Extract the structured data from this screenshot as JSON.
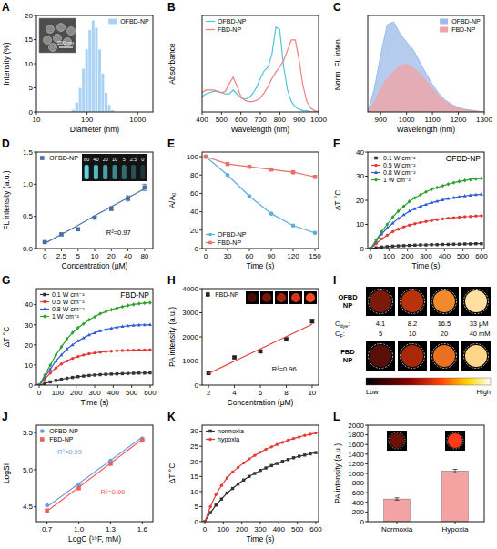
{
  "chart_data": [
    {
      "panel": "A",
      "type": "histogram",
      "x_label": "Diameter (nm)",
      "y_label": "Intensity (%)",
      "log": "x",
      "xlim": [
        10,
        2000
      ],
      "xticks": [
        10,
        100,
        1000
      ],
      "ylim": [
        0,
        20
      ],
      "yticks": [
        0,
        5,
        10,
        15,
        20
      ],
      "legend": "upper right",
      "series": [
        {
          "name": "OFBD-NP",
          "color": "#a9d2f5",
          "bins": [
            50,
            58,
            68,
            79,
            91,
            106,
            123,
            142,
            165,
            190,
            220,
            255,
            295,
            342
          ],
          "counts": [
            0.5,
            2,
            5,
            9,
            13,
            17,
            19,
            17.5,
            13,
            8,
            4,
            1.5,
            0.4
          ]
        }
      ],
      "inset_label": "200 nm"
    },
    {
      "panel": "B",
      "type": "line",
      "x_label": "Wavelength (nm)",
      "y_label": "Absorbance",
      "tick_labels": "x",
      "xlim": [
        400,
        1000
      ],
      "xticks": [
        400,
        500,
        600,
        700,
        800,
        900,
        1000
      ],
      "ylim": [
        0,
        0.75
      ],
      "legend": "upper left",
      "x": [
        400,
        420,
        440,
        460,
        480,
        500,
        520,
        540,
        560,
        580,
        600,
        620,
        640,
        660,
        680,
        700,
        720,
        740,
        760,
        780,
        800,
        820,
        840,
        860,
        880,
        900,
        920,
        940,
        960,
        980,
        1000
      ],
      "series": [
        {
          "name": "OFBD-NP",
          "color": "#4fc4d8",
          "values": [
            0.12,
            0.14,
            0.15,
            0.16,
            0.16,
            0.15,
            0.14,
            0.14,
            0.17,
            0.14,
            0.11,
            0.1,
            0.11,
            0.14,
            0.19,
            0.26,
            0.32,
            0.35,
            0.45,
            0.66,
            0.64,
            0.35,
            0.17,
            0.08,
            0.04,
            0.02,
            0.01,
            0.01,
            0,
            0,
            0
          ]
        },
        {
          "name": "FBD-NP",
          "color": "#ef7f7f",
          "values": [
            0.15,
            0.17,
            0.17,
            0.17,
            0.16,
            0.15,
            0.16,
            0.22,
            0.27,
            0.2,
            0.12,
            0.09,
            0.08,
            0.08,
            0.09,
            0.11,
            0.15,
            0.2,
            0.26,
            0.31,
            0.35,
            0.4,
            0.48,
            0.56,
            0.56,
            0.4,
            0.2,
            0.08,
            0.03,
            0.01,
            0
          ]
        }
      ]
    },
    {
      "panel": "C",
      "type": "area",
      "x_label": "Wavelength (nm)",
      "y_label": "Norm. FL inten.",
      "tick_labels": "x",
      "xlim": [
        850,
        1300
      ],
      "xticks": [
        900,
        1000,
        1100,
        1200,
        1300
      ],
      "ylim": [
        0,
        1.05
      ],
      "legend": "upper right",
      "x": [
        850,
        875,
        900,
        925,
        950,
        975,
        1000,
        1025,
        1050,
        1075,
        1100,
        1125,
        1150,
        1175,
        1200,
        1225,
        1250,
        1275,
        1300
      ],
      "series": [
        {
          "name": "OFBD-NP",
          "color": "#9dbbe8",
          "values": [
            0,
            0.25,
            0.62,
            0.95,
            0.98,
            0.85,
            0.76,
            0.68,
            0.55,
            0.42,
            0.3,
            0.2,
            0.13,
            0.08,
            0.05,
            0.03,
            0.02,
            0.01,
            0
          ]
        },
        {
          "name": "FBD-NP",
          "color": "#f3a3a3",
          "values": [
            0,
            0.1,
            0.25,
            0.36,
            0.44,
            0.5,
            0.52,
            0.48,
            0.42,
            0.34,
            0.25,
            0.17,
            0.11,
            0.07,
            0.04,
            0.02,
            0.01,
            0.005,
            0
          ]
        }
      ]
    },
    {
      "panel": "D",
      "type": "scatter",
      "x_label": "Concentration (μM)",
      "y_label": "FL intensity (a.u.)",
      "categories": [
        "0",
        "2.5",
        "5",
        "10",
        "20",
        "40",
        "80"
      ],
      "ylim": [
        0,
        1.5
      ],
      "yticks": [
        {
          "value": 0,
          "label": "0.0"
        },
        0.5,
        {
          "value": 1,
          "label": "1.0"
        },
        1.5
      ],
      "legend": "upper left",
      "series": [
        {
          "name": "OFBD-NP",
          "color": "#4a6fa5",
          "marker": "square",
          "values": [
            0.1,
            0.22,
            0.3,
            0.48,
            0.62,
            0.78,
            0.95
          ],
          "errors": [
            0.01,
            0.02,
            0.02,
            0.02,
            0.03,
            0.04,
            0.05
          ]
        },
        {
          "type": "line",
          "color": "#4a6fa5",
          "values": [
            0.08,
            0.22,
            0.36,
            0.51,
            0.65,
            0.79,
            0.93
          ]
        }
      ],
      "annotations": [
        {
          "text": "R²=0.97"
        }
      ],
      "inset_labels": [
        "80",
        "40",
        "20",
        "10",
        "5",
        "2.5",
        "0"
      ]
    },
    {
      "panel": "E",
      "type": "line",
      "x_label": "Time (s)",
      "y_label": "A/A₀",
      "xlim": [
        -5,
        155
      ],
      "xticks": [
        0,
        30,
        60,
        90,
        120,
        150
      ],
      "ylim": [
        0,
        105
      ],
      "yticks": [
        0,
        20,
        40,
        60,
        80,
        100
      ],
      "legend": "lower left",
      "x": [
        0,
        30,
        60,
        90,
        120,
        150
      ],
      "series": [
        {
          "name": "OFBD-NP",
          "color": "#5aaedc",
          "marker": "circle",
          "values": [
            100,
            80,
            57,
            38,
            25,
            17
          ]
        },
        {
          "name": "FBD-NP",
          "color": "#e8706a",
          "marker": "square",
          "values": [
            100,
            92,
            89,
            86,
            83,
            78
          ]
        }
      ]
    },
    {
      "panel": "F",
      "type": "line",
      "title": "OFBD-NP",
      "x_label": "Time (s)",
      "y_label": "ΔT °C",
      "xlim": [
        -15,
        615
      ],
      "xticks": [
        0,
        100,
        200,
        300,
        400,
        500,
        600
      ],
      "ylim": [
        0,
        40
      ],
      "yticks": [
        0,
        10,
        20,
        30,
        40
      ],
      "legend": "upper left",
      "x": [
        0,
        30,
        60,
        90,
        120,
        150,
        180,
        210,
        240,
        270,
        300,
        330,
        360,
        390,
        420,
        450,
        480,
        510,
        540,
        570,
        600
      ],
      "series": [
        {
          "name": "0.1 W cm⁻²",
          "color": "#333333",
          "marker": "square",
          "values": [
            0,
            0.3,
            0.6,
            0.8,
            1.0,
            1.1,
            1.2,
            1.3,
            1.4,
            1.5,
            1.5,
            1.6,
            1.6,
            1.7,
            1.7,
            1.8,
            1.8,
            1.9,
            1.9,
            2.0,
            2.0
          ]
        },
        {
          "name": "0.5 W cm⁻²",
          "color": "#e53935",
          "marker": "circle",
          "values": [
            0,
            2,
            4,
            5.5,
            7,
            8,
            9,
            9.7,
            10.3,
            10.8,
            11.2,
            11.6,
            12,
            12.3,
            12.6,
            12.8,
            13,
            13.2,
            13.3,
            13.5,
            13.6
          ]
        },
        {
          "name": "0.8 W cm⁻²",
          "color": "#2e5bd8",
          "marker": "triangle",
          "values": [
            0,
            3,
            6,
            8.5,
            10.5,
            12.5,
            14,
            15.5,
            16.5,
            17.5,
            18.3,
            19,
            19.6,
            20.2,
            20.7,
            21.1,
            21.5,
            21.8,
            22.1,
            22.3,
            22.5
          ]
        },
        {
          "name": "1 W cm⁻²",
          "color": "#2ca02c",
          "marker": "diamond",
          "values": [
            0,
            3.5,
            7,
            10,
            13,
            15.5,
            17.5,
            19.5,
            21,
            22.3,
            23.5,
            24.5,
            25.3,
            26,
            26.7,
            27.3,
            27.8,
            28.2,
            28.6,
            28.9,
            29.1
          ]
        }
      ]
    },
    {
      "panel": "G",
      "type": "line",
      "title": "FBD-NP",
      "x_label": "Time (s)",
      "y_label": "ΔT °C",
      "xlim": [
        -15,
        615
      ],
      "xticks": [
        0,
        100,
        200,
        300,
        400,
        500,
        600
      ],
      "ylim": [
        0,
        48
      ],
      "yticks": [
        0,
        10,
        20,
        30,
        40
      ],
      "legend": "upper left",
      "x": [
        0,
        30,
        60,
        90,
        120,
        150,
        180,
        210,
        240,
        270,
        300,
        330,
        360,
        390,
        420,
        450,
        480,
        510,
        540,
        570,
        600
      ],
      "series": [
        {
          "name": "0.1 W cm⁻²",
          "color": "#333333",
          "marker": "square",
          "values": [
            0,
            0.8,
            1.6,
            2.3,
            2.9,
            3.4,
            3.8,
            4.2,
            4.5,
            4.8,
            5,
            5.2,
            5.4,
            5.5,
            5.6,
            5.7,
            5.8,
            5.9,
            6,
            6,
            6.1
          ]
        },
        {
          "name": "0.5 W cm⁻²",
          "color": "#e53935",
          "marker": "circle",
          "values": [
            0,
            3,
            6,
            8.5,
            10.5,
            12,
            13.3,
            14.2,
            15,
            15.6,
            16,
            16.4,
            16.7,
            16.9,
            17.1,
            17.2,
            17.3,
            17.4,
            17.5,
            17.5,
            17.6
          ]
        },
        {
          "name": "0.8 W cm⁻²",
          "color": "#2e5bd8",
          "marker": "triangle",
          "values": [
            0,
            4,
            8,
            12,
            15,
            18,
            20,
            22,
            23.5,
            25,
            26,
            27,
            27.7,
            28.3,
            28.8,
            29.2,
            29.5,
            29.7,
            29.9,
            30,
            30.1
          ]
        },
        {
          "name": "1 W cm⁻²",
          "color": "#2ca02c",
          "marker": "diamond",
          "values": [
            0,
            5,
            10,
            15,
            19,
            23,
            26,
            28.5,
            30.5,
            32.5,
            34,
            35.5,
            36.5,
            37.5,
            38.3,
            39,
            39.6,
            40.1,
            40.5,
            40.8,
            41
          ]
        }
      ]
    },
    {
      "panel": "H",
      "type": "scatter",
      "x_label": "Concentration (μM)",
      "y_label": "PA intensity (a.u.)",
      "xlim": [
        1.5,
        10.5
      ],
      "xticks": [
        2,
        4,
        6,
        8,
        10
      ],
      "ylim": [
        0,
        4000
      ],
      "yticks": [
        0,
        1000,
        2000,
        3000,
        4000
      ],
      "legend": "upper left",
      "x": [
        2,
        4,
        6,
        8,
        10
      ],
      "series": [
        {
          "name": "FBD-NP",
          "color": "#222222",
          "marker": "square",
          "values": [
            500,
            1150,
            1400,
            1900,
            2650
          ],
          "errors": [
            30,
            40,
            50,
            60,
            80
          ]
        },
        {
          "type": "line",
          "color": "#e8403a",
          "x": [
            2,
            10
          ],
          "values": [
            480,
            2520
          ]
        }
      ],
      "annotations": [
        {
          "text": "R²=0.96"
        }
      ]
    },
    {
      "panel": "I",
      "type": "image_grid",
      "rows": [
        "OFBD NP",
        "FBD NP"
      ],
      "dye_label": {
        "symbol": "C",
        "sub": "dye",
        "colon": ":"
      },
      "dye": [
        4.1,
        8.2,
        16.5,
        33
      ],
      "dye_unit": "μM",
      "f_label": {
        "symbol": "C",
        "sub": "F",
        "colon": ":"
      },
      "f": [
        5,
        10,
        20,
        40
      ],
      "f_unit": "mM",
      "colorbar": [
        "Low",
        "High"
      ]
    },
    {
      "panel": "J",
      "type": "scatter",
      "x_label": "LogC (¹⁹F, mM)",
      "y_label": "LogSI",
      "xlim": [
        0.6,
        1.7
      ],
      "xticks": [
        0.7,
        {
          "value": 1,
          "label": "1.0"
        },
        1.3,
        1.6
      ],
      "ylim": [
        4.3,
        5.6
      ],
      "yticks": [
        4.5,
        {
          "value": 5,
          "label": "5.0"
        },
        5.5
      ],
      "legend": "upper left",
      "x": [
        0.7,
        1.0,
        1.3,
        1.6
      ],
      "series": [
        {
          "name": "OFBD-NP",
          "color": "#6f9be0",
          "marker": "circle",
          "values": [
            4.52,
            4.8,
            5.12,
            5.42
          ]
        },
        {
          "name": "FBD-NP",
          "color": "#f0605a",
          "marker": "square",
          "values": [
            4.45,
            4.75,
            5.08,
            5.4
          ]
        },
        {
          "type": "line",
          "color": "#6f9be0",
          "x": [
            0.7,
            1.6
          ],
          "values": [
            4.5,
            5.44
          ]
        },
        {
          "type": "line",
          "color": "#f0605a",
          "x": [
            0.7,
            1.6
          ],
          "values": [
            4.44,
            5.41
          ]
        }
      ],
      "annotations": [
        {
          "text": "R²=0.99",
          "color": "#6f9be0"
        },
        {
          "text": "R²=0.99",
          "color": "#f0605a"
        }
      ]
    },
    {
      "panel": "K",
      "type": "line",
      "x_label": "Time (s)",
      "y_label": "ΔT °C",
      "xlim": [
        -15,
        615
      ],
      "xticks": [
        0,
        100,
        200,
        300,
        400,
        500,
        600
      ],
      "ylim": [
        0,
        32
      ],
      "yticks": [
        0,
        5,
        10,
        15,
        20,
        25,
        30
      ],
      "legend": "upper left",
      "x": [
        0,
        30,
        60,
        90,
        120,
        150,
        180,
        210,
        240,
        270,
        300,
        330,
        360,
        390,
        420,
        450,
        480,
        510,
        540,
        570,
        600
      ],
      "series": [
        {
          "name": "normoxia",
          "color": "#333333",
          "marker": "square",
          "values": [
            0,
            3,
            5.5,
            7.5,
            9.5,
            11,
            12.5,
            13.8,
            15,
            16,
            17,
            17.8,
            18.6,
            19.3,
            20,
            20.6,
            21.2,
            21.7,
            22.1,
            22.5,
            22.9
          ]
        },
        {
          "name": "hypoxia",
          "color": "#e53935",
          "marker": "circle",
          "values": [
            0,
            5,
            9,
            12,
            14.5,
            16.5,
            18,
            19.5,
            20.8,
            22,
            23,
            24,
            24.8,
            25.6,
            26.3,
            27,
            27.6,
            28.1,
            28.6,
            29,
            29.4
          ]
        }
      ]
    },
    {
      "panel": "L",
      "type": "bar",
      "y_label": "PA intensity (a.u.)",
      "categories": [
        "Normoxia",
        "Hypoxia"
      ],
      "ylim": [
        0,
        2000
      ],
      "yticks": [
        0,
        200,
        400,
        600,
        800,
        1000,
        1200,
        1400,
        1600,
        1800,
        2000
      ],
      "series": [
        {
          "color": "#f4a3a3",
          "values": [
            470,
            1050
          ],
          "errors": [
            25,
            35
          ]
        }
      ]
    }
  ]
}
